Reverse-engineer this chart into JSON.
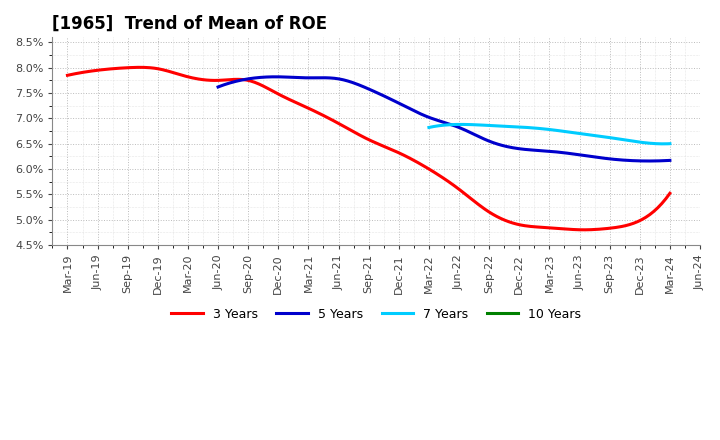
{
  "title": "[1965]  Trend of Mean of ROE",
  "ylim": [
    0.045,
    0.086
  ],
  "yticks": [
    0.045,
    0.05,
    0.055,
    0.06,
    0.065,
    0.07,
    0.075,
    0.08,
    0.085
  ],
  "ytick_labels": [
    "4.5%",
    "5.0%",
    "5.5%",
    "6.0%",
    "6.5%",
    "7.0%",
    "7.5%",
    "8.0%",
    "8.5%"
  ],
  "x_labels": [
    "Mar-19",
    "Jun-19",
    "Sep-19",
    "Dec-19",
    "Mar-20",
    "Jun-20",
    "Sep-20",
    "Dec-20",
    "Mar-21",
    "Jun-21",
    "Sep-21",
    "Dec-21",
    "Mar-22",
    "Jun-22",
    "Sep-22",
    "Dec-22",
    "Mar-23",
    "Jun-23",
    "Sep-23",
    "Dec-23",
    "Mar-24",
    "Jun-24"
  ],
  "series_3y_x": [
    0,
    1,
    2,
    3,
    4,
    5,
    6,
    7,
    8,
    9,
    10,
    11,
    12,
    13,
    14,
    15,
    16,
    17,
    18,
    19,
    20
  ],
  "series_3y_y": [
    0.0785,
    0.0795,
    0.08,
    0.0798,
    0.0782,
    0.0775,
    0.0775,
    0.0748,
    0.072,
    0.069,
    0.0658,
    0.0632,
    0.06,
    0.056,
    0.0515,
    0.049,
    0.0484,
    0.048,
    0.0483,
    0.0498,
    0.0552
  ],
  "series_5y_x": [
    5,
    6,
    7,
    8,
    9,
    10,
    11,
    12,
    13,
    14,
    15,
    16,
    17,
    18,
    19,
    20
  ],
  "series_5y_y": [
    0.0762,
    0.0778,
    0.0782,
    0.078,
    0.0778,
    0.0758,
    0.073,
    0.0702,
    0.0682,
    0.0655,
    0.064,
    0.0635,
    0.0628,
    0.062,
    0.0616,
    0.0617
  ],
  "series_7y_x": [
    12,
    13,
    14,
    15,
    16,
    17,
    18,
    19,
    20
  ],
  "series_7y_y": [
    0.0682,
    0.0688,
    0.0686,
    0.0683,
    0.0678,
    0.067,
    0.0662,
    0.0653,
    0.065
  ],
  "series_10y_x": [],
  "series_10y_y": [],
  "color_3y": "#ff0000",
  "color_5y": "#0000cc",
  "color_7y": "#00ccff",
  "color_10y": "#008000",
  "legend_labels": [
    "3 Years",
    "5 Years",
    "7 Years",
    "10 Years"
  ],
  "background_color": "#ffffff",
  "grid_color": "#bbbbbb",
  "title_fontsize": 12,
  "tick_fontsize": 8
}
